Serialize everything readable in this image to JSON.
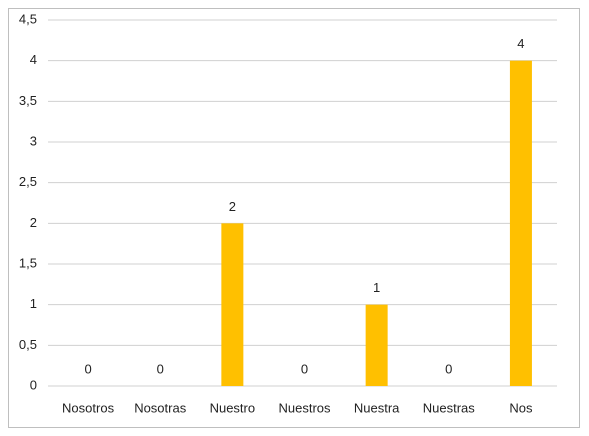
{
  "chart_data": {
    "type": "bar",
    "categories": [
      "Nosotros",
      "Nosotras",
      "Nuestro",
      "Nuestros",
      "Nuestra",
      "Nuestras",
      "Nos"
    ],
    "values": [
      0,
      0,
      2,
      0,
      1,
      0,
      4
    ],
    "color": "#ffc000",
    "ylim": [
      0,
      4.5
    ],
    "yticks": [
      0,
      {
        "value": 0.5,
        "label": "0,5"
      },
      1,
      {
        "value": 1.5,
        "label": "1,5"
      },
      2,
      {
        "value": 2.5,
        "label": "2,5"
      },
      3,
      {
        "value": 3.5,
        "label": "3,5"
      },
      4,
      {
        "value": 4.5,
        "label": "4,5"
      }
    ],
    "grid": true
  }
}
